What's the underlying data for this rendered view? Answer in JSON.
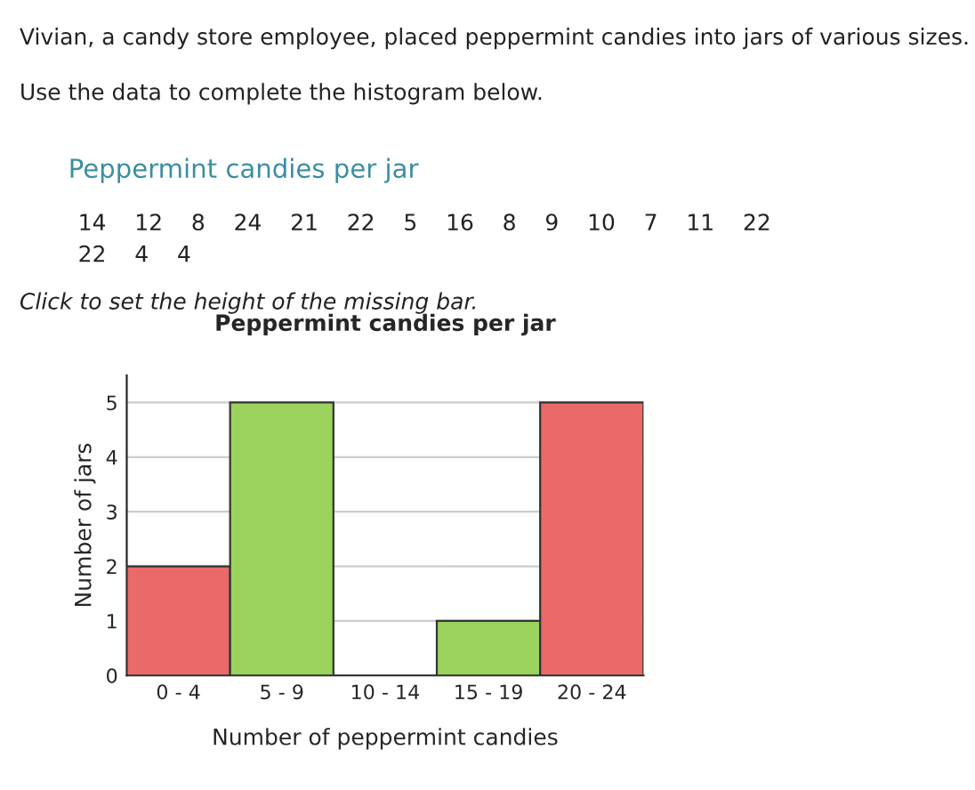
{
  "chart_data": {
    "type": "bar",
    "title": "Peppermint candies per jar",
    "categories": [
      "0 - 4",
      "5 - 9",
      "10 - 14",
      "15 - 19",
      "20 - 24"
    ],
    "values": [
      2,
      5,
      null,
      1,
      5
    ],
    "colors": [
      "#ea6a6a",
      "#9ad25c",
      null,
      "#9ad25c",
      "#ea6a6a"
    ],
    "xlabel": "Number of peppermint candies",
    "ylabel": "Number of jars",
    "ylim": [
      0,
      5.5
    ],
    "yticks": [
      0,
      1,
      2,
      3,
      4,
      5
    ],
    "grid": "y",
    "annotations": [
      "Vivian, a candy store employee, placed peppermint candies into jars of various sizes.",
      "Use the data to complete the histogram below.",
      "Peppermint candies per jar",
      "14    12    8    24    21    22    5    16    8    9    10    7    11    22\n22    4    4",
      "Click to set the height of the missing bar."
    ]
  }
}
